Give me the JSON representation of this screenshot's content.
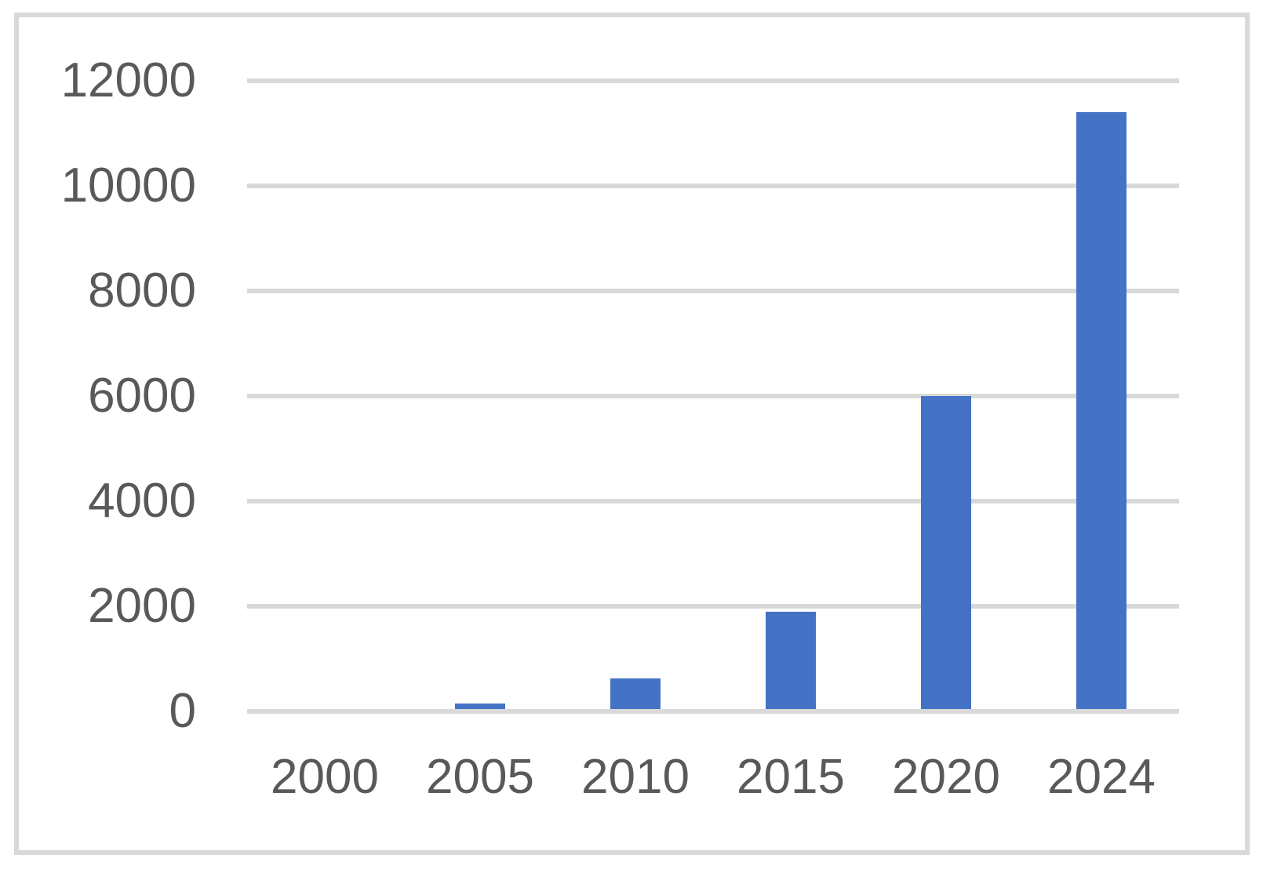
{
  "chart_data": {
    "type": "bar",
    "title": "",
    "categories": [
      "2000",
      "2005",
      "2010",
      "2015",
      "2020",
      "2024"
    ],
    "values": [
      0,
      150,
      620,
      1900,
      6000,
      11400
    ],
    "xlabel": "",
    "ylabel": "",
    "ylim": [
      0,
      12000
    ],
    "ytick_step": 2000,
    "yticks": [
      "0",
      "2000",
      "4000",
      "6000",
      "8000",
      "10000",
      "12000"
    ],
    "grid": true,
    "legend": false,
    "colors": {
      "bar": "#4472C4",
      "gridline": "#D9D9D9",
      "axis_label": "#595959",
      "frame_border": "#D9D9D9",
      "background": "#FFFFFF"
    }
  }
}
